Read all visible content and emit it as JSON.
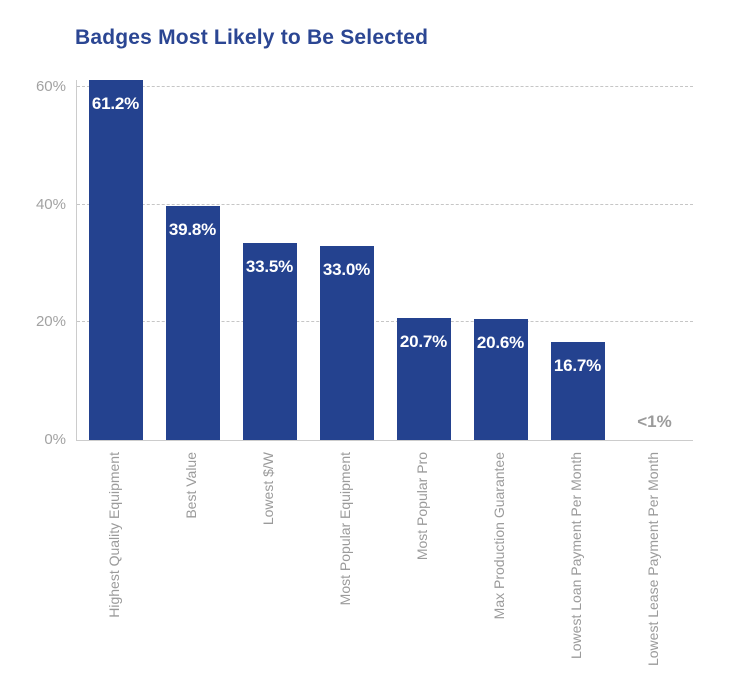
{
  "title": "Badges Most Likely to Be Selected",
  "chart_data": {
    "type": "bar",
    "title": "Badges Most Likely to Be Selected",
    "categories": [
      "Highest Quality Equipment",
      "Best Value",
      "Lowest $/W",
      "Most Popular Equipment",
      "Most Popular Pro",
      "Max Production Guarantee",
      "Lowest Loan Payment Per Month",
      "Lowest Lease Payment Per Month"
    ],
    "values": [
      61.2,
      39.8,
      33.5,
      33.0,
      20.7,
      20.6,
      16.7,
      0.5
    ],
    "value_labels": [
      "61.2%",
      "39.8%",
      "33.5%",
      "33.0%",
      "20.7%",
      "20.6%",
      "16.7%",
      "<1%"
    ],
    "yticks": [
      "0%",
      "20%",
      "40%",
      "60%"
    ],
    "ytick_values": [
      0,
      20,
      40,
      60
    ],
    "ylim": [
      0,
      61.2
    ],
    "xlabel": "",
    "ylabel": "",
    "grid": "horizontal-dashed",
    "legend": "none",
    "colors": {
      "bar": "#24428f",
      "title": "#2b4693",
      "axis_text": "#a2a2a2",
      "category_text": "#9b9b9b",
      "gridline": "#c6c6c6",
      "value_label": "#ffffff",
      "no_bar_label": "#9b9b9b",
      "background": "#ffffff"
    }
  }
}
